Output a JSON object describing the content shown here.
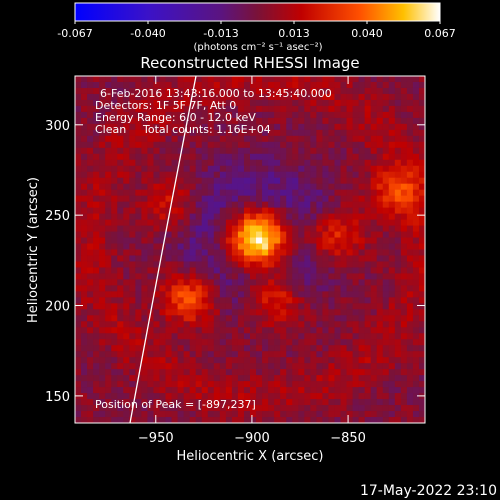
{
  "colorbar": {
    "ticks": [
      "-0.067",
      "-0.040",
      "-0.013",
      "0.013",
      "0.040",
      "0.067"
    ],
    "units": "(photons cm⁻² s⁻¹ asec⁻²)"
  },
  "chart_data": {
    "type": "heatmap",
    "title": "Reconstructed RHESSI Image",
    "xlabel": "Heliocentric X (arcsec)",
    "ylabel": "Heliocentric Y (arcsec)",
    "x_ticks": [
      "-950",
      "-900",
      "-850"
    ],
    "y_ticks": [
      "300",
      "250",
      "200",
      "150"
    ],
    "xlim": [
      -992,
      -810
    ],
    "ylim": [
      135,
      327
    ],
    "value_range": [
      -0.067,
      0.067
    ],
    "colormap": "blue-purple-red-orange-yellow-white",
    "peak": {
      "x": -897,
      "y": 237
    },
    "sources": [
      {
        "x": -897,
        "y": 237,
        "peak_fraction": 1.0
      },
      {
        "x": -932,
        "y": 205,
        "peak_fraction": 0.55
      },
      {
        "x": -888,
        "y": 204,
        "peak_fraction": 0.5
      },
      {
        "x": -858,
        "y": 238,
        "peak_fraction": 0.5
      },
      {
        "x": -942,
        "y": 256,
        "peak_fraction": 0.3
      },
      {
        "x": -825,
        "y": 262,
        "peak_fraction": 0.45
      }
    ],
    "grid": false,
    "legend": "none",
    "annotations": [
      "6-Feb-2016 13:43:16.000 to 13:45:40.000",
      "Detectors: 1F 5F 7F, Att 0",
      "Energy Range: 6.0 - 12.0 keV",
      "Clean",
      "Total counts: 1.16E+04",
      "Position of Peak = [-897,237]"
    ]
  },
  "footer": {
    "timestamp": "17-May-2022 23:10"
  },
  "colors": {
    "background": "#000000",
    "text": "#ffffff",
    "limb": "#ffffff"
  }
}
